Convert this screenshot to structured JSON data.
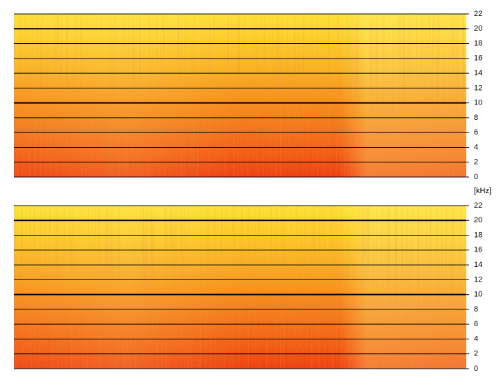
{
  "chart_data": [
    {
      "type": "spectrogram",
      "ylim": [
        0,
        22
      ],
      "yticks": [
        0,
        2,
        4,
        6,
        8,
        10,
        12,
        14,
        16,
        18,
        20,
        22
      ],
      "major_yticks": [
        10,
        20
      ],
      "grid": true,
      "ylabel": "[kHz]"
    },
    {
      "type": "spectrogram",
      "ylim": [
        0,
        22
      ],
      "yticks": [
        0,
        2,
        4,
        6,
        8,
        10,
        12,
        14,
        16,
        18,
        20,
        22
      ],
      "major_yticks": [
        10,
        20
      ],
      "grid": true
    }
  ]
}
